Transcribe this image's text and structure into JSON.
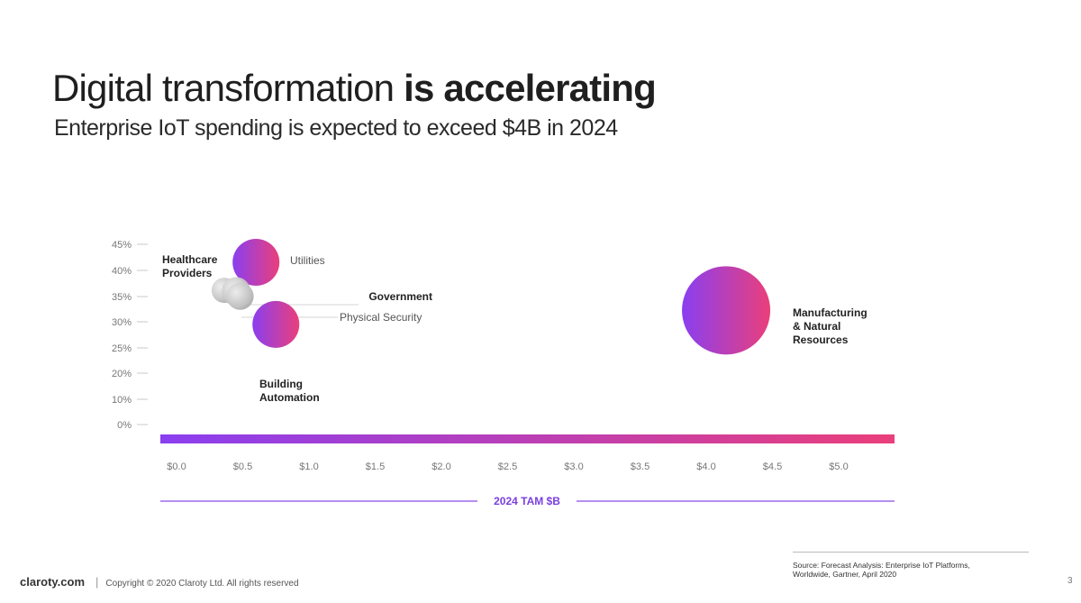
{
  "slide": {
    "title_regular": "Digital transformation ",
    "title_bold": "is accelerating",
    "subtitle": "Enterprise IoT spending is expected to exceed $4B in 2024"
  },
  "chart_data": {
    "type": "scatter",
    "subtype": "bubble",
    "title": "",
    "xlabel": "2024 TAM $B",
    "ylabel": "",
    "xlim": [
      0,
      5.5
    ],
    "ylim": [
      0,
      45
    ],
    "x_ticks": [
      "$0.0",
      "$0.5",
      "$1.0",
      "$1.5",
      "$2.0",
      "$2.5",
      "$3.0",
      "$3.5",
      "$4.0",
      "$4.5",
      "$5.0"
    ],
    "y_ticks": [
      "0%",
      "10%",
      "20%",
      "25%",
      "30%",
      "35%",
      "40%",
      "45%"
    ],
    "grid": false,
    "legend": "none",
    "points": [
      {
        "label": "Healthcare Providers",
        "x": 0.36,
        "y": 33.5,
        "style": "gray",
        "label_bold": true
      },
      {
        "label": "Utilities",
        "x": 0.6,
        "y": 40.5,
        "style": "gradient",
        "label_bold": false
      },
      {
        "label": "Government",
        "x": 0.45,
        "y": 33.2,
        "style": "gray",
        "label_bold": true
      },
      {
        "label": "Physical Security",
        "x": 0.48,
        "y": 32.0,
        "style": "gray",
        "label_bold": false
      },
      {
        "label": "Building Automation",
        "x": 0.75,
        "y": 25.0,
        "style": "gradient",
        "label_bold": true
      },
      {
        "label": "Manufacturing & Natural Resources",
        "x": 4.15,
        "y": 28.5,
        "style": "gradient",
        "label_bold": true
      }
    ],
    "colors": {
      "gradient_start": "#8a3ff0",
      "gradient_end": "#ea3f7b",
      "axis_line": "#8a4ce8",
      "axis_label": "#7a3fe0",
      "tick_text": "#777777",
      "gray_bubble": "#c9c9c9"
    }
  },
  "footer": {
    "brand": "claroty.com",
    "separator": "|",
    "copyright": "Copyright © 2020 Claroty Ltd. All rights reserved",
    "source": "Source: Forecast Analysis: Enterprise IoT Platforms, Worldwide, Gartner, April 2020",
    "page_number": "3"
  }
}
